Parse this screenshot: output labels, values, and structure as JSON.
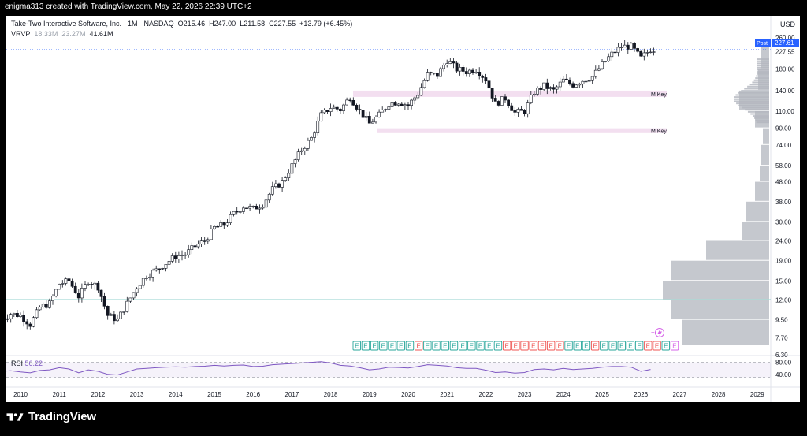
{
  "header": {
    "created_by": "enigma313 created with TradingView.com, May 22, 2026 22:39 UTC+2"
  },
  "symbol": {
    "name": "Take-Two Interactive Software, Inc. · 1M · NASDAQ",
    "open_label": "O",
    "open": "215.46",
    "high_label": "H",
    "high": "247.00",
    "low_label": "L",
    "low": "211.58",
    "close_label": "C",
    "close": "227.55",
    "change": "+13.79 (+6.45%)"
  },
  "vrvp": {
    "label": "VRVP",
    "up": "18.33M",
    "down": "23.27M",
    "total": "41.61M"
  },
  "rsi": {
    "label": "RSI",
    "value": "56.22"
  },
  "price_axis": {
    "currency": "USD",
    "post_label": "Post",
    "post_value": "227.61",
    "last_value": "227.55",
    "ticks": [
      "260.00",
      "227.55",
      "180.00",
      "140.00",
      "110.00",
      "90.00",
      "74.00",
      "58.00",
      "48.00",
      "38.00",
      "30.00",
      "24.00",
      "19.00",
      "15.00",
      "12.00",
      "9.50",
      "7.70",
      "6.30"
    ]
  },
  "rsi_axis": {
    "ticks": [
      "80.00",
      "40.00"
    ]
  },
  "time_axis": {
    "ticks": [
      "2010",
      "2011",
      "2012",
      "2013",
      "2014",
      "2015",
      "2016",
      "2017",
      "2018",
      "2019",
      "2020",
      "2021",
      "2022",
      "2023",
      "2024",
      "2025",
      "2026",
      "2027",
      "2028",
      "2029"
    ]
  },
  "annotations": {
    "zone1_label": "M Key",
    "zone2_label": "M Key",
    "support_level": 12.0
  },
  "earnings": {
    "markers": [
      "E",
      "E",
      "E",
      "E",
      "E",
      "E",
      "E",
      "E",
      "E",
      "E",
      "E",
      "E",
      "E",
      "E",
      "E",
      "E",
      "E",
      "E",
      "E",
      "E",
      "E",
      "E",
      "E",
      "E",
      "E",
      "E",
      "E",
      "E",
      "E",
      "E",
      "E",
      "E",
      "E",
      "E",
      "E",
      "E",
      "E"
    ],
    "negative_indices": [
      7,
      17,
      18,
      19,
      20,
      21,
      22,
      23,
      27,
      33,
      34
    ],
    "upcoming_index": 36
  },
  "colors": {
    "up": "#ffffff",
    "down": "#131722",
    "zone": "#f3dff0",
    "support": "#26a69a",
    "rsi": "#7e57c2",
    "vp": "#b2b5be",
    "post": "#2962ff",
    "e_green": "#26a69a",
    "e_red": "#ef5350",
    "e_purple": "#d563e8"
  },
  "footer": {
    "brand": "TradingView"
  },
  "chart_data": {
    "type": "candlestick",
    "title": "Take-Two Interactive Software, Inc. · 1M · NASDAQ",
    "scale": "log",
    "ylim": [
      6.3,
      260
    ],
    "x": [
      "2009-07",
      "2009-10",
      "2010-01",
      "2010-04",
      "2010-07",
      "2010-10",
      "2011-01",
      "2011-04",
      "2011-07",
      "2011-10",
      "2012-01",
      "2012-04",
      "2012-07",
      "2012-10",
      "2013-01",
      "2013-04",
      "2013-07",
      "2013-10",
      "2014-01",
      "2014-04",
      "2014-07",
      "2014-10",
      "2015-01",
      "2015-04",
      "2015-07",
      "2015-10",
      "2016-01",
      "2016-04",
      "2016-07",
      "2016-10",
      "2017-01",
      "2017-04",
      "2017-07",
      "2017-10",
      "2018-01",
      "2018-04",
      "2018-07",
      "2018-10",
      "2019-01",
      "2019-04",
      "2019-07",
      "2019-10",
      "2020-01",
      "2020-04",
      "2020-07",
      "2020-10",
      "2021-01",
      "2021-04",
      "2021-07",
      "2021-10",
      "2022-01",
      "2022-04",
      "2022-07",
      "2022-10",
      "2023-01",
      "2023-04",
      "2023-07",
      "2023-10",
      "2024-01",
      "2024-04",
      "2024-07",
      "2024-10",
      "2025-01",
      "2025-04",
      "2025-07",
      "2025-10",
      "2026-01",
      "2026-04"
    ],
    "close": [
      9.5,
      10.2,
      10.0,
      9.0,
      11.0,
      11.5,
      14.5,
      15.0,
      12.5,
      15.0,
      14.0,
      10.0,
      9.5,
      11.5,
      14.0,
      16.0,
      17.0,
      18.5,
      20.0,
      20.5,
      22.5,
      24.0,
      28.0,
      29.0,
      33.0,
      36.0,
      35.0,
      37.0,
      44.0,
      48.0,
      58.0,
      70.0,
      80.0,
      105.0,
      115.0,
      112.0,
      130.0,
      110.0,
      95.0,
      105.0,
      120.0,
      123.0,
      118.0,
      135.0,
      170.0,
      168.0,
      200.0,
      180.0,
      175.0,
      180.0,
      160.0,
      120.0,
      128.0,
      108.0,
      110.0,
      138.0,
      148.0,
      140.0,
      158.0,
      150.0,
      158.0,
      165.0,
      190.0,
      215.0,
      235.0,
      235.0,
      205.0,
      227.55
    ],
    "rsi": [
      50,
      52,
      48,
      45,
      53,
      55,
      62,
      58,
      45,
      55,
      50,
      40,
      38,
      48,
      58,
      60,
      62,
      64,
      65,
      64,
      66,
      67,
      70,
      68,
      70,
      71,
      66,
      67,
      72,
      74,
      76,
      78,
      80,
      82,
      78,
      70,
      68,
      62,
      55,
      58,
      64,
      63,
      61,
      66,
      72,
      70,
      68,
      62,
      60,
      60,
      54,
      46,
      48,
      44,
      46,
      56,
      58,
      55,
      60,
      56,
      58,
      60,
      64,
      66,
      66,
      64,
      50,
      56.22
    ],
    "volume_profile_note": "visible range volume profile on right side",
    "zones": [
      {
        "label": "M Key",
        "low": 130,
        "high": 140
      },
      {
        "label": "M Key",
        "low": 85,
        "high": 90
      }
    ],
    "hline": 12.0
  }
}
